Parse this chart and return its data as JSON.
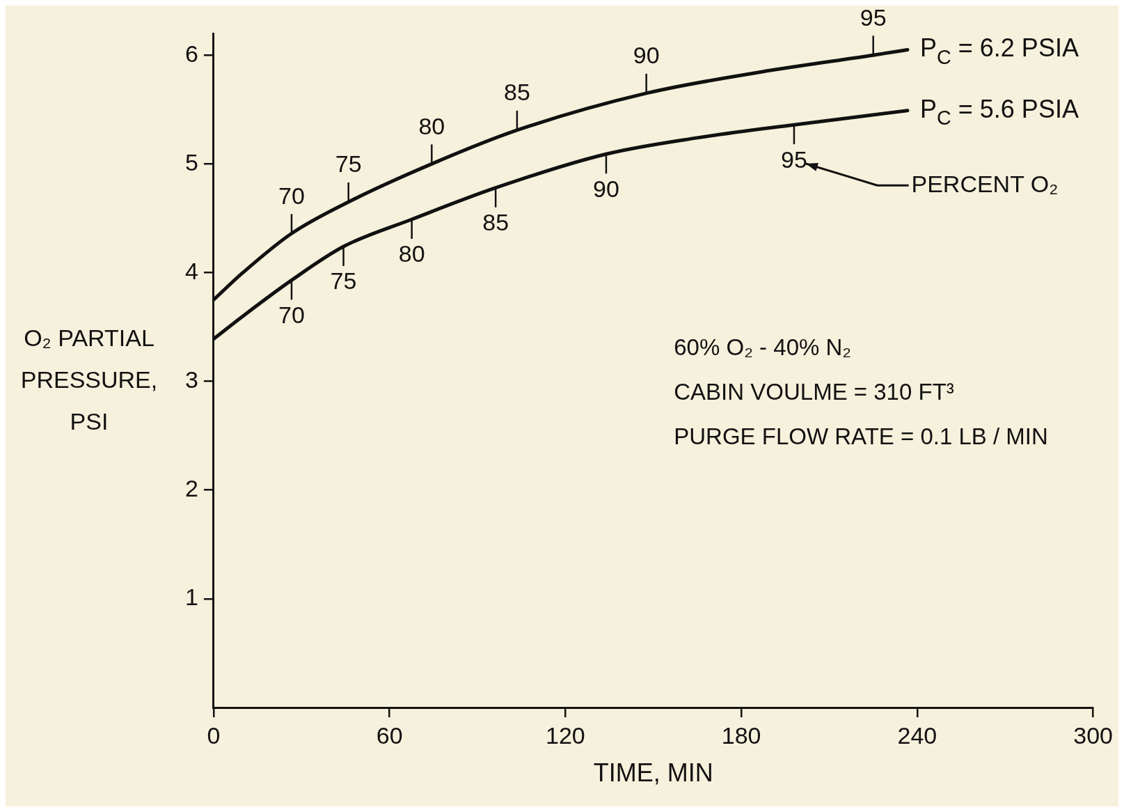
{
  "chart_data": {
    "type": "line",
    "xlabel": "TIME, MIN",
    "ylabel": "O₂ PARTIAL PRESSURE, PSI",
    "xlim": [
      0,
      300
    ],
    "xticks": [
      0,
      60,
      120,
      180,
      240,
      300
    ],
    "ylim": [
      0,
      6.2
    ],
    "yticks": [
      1,
      2,
      3,
      4,
      5,
      6
    ],
    "grid": false,
    "legend": "right",
    "marker": "none",
    "line_style": "solid",
    "series": [
      {
        "name": "P$_{C}$ = 6.2 PSIA",
        "color": "#111111",
        "x": [
          0,
          10,
          26.6,
          46,
          74.4,
          103.5,
          147.6,
          190,
          225,
          236.7
        ],
        "values": [
          3.75,
          4.0,
          4.36,
          4.65,
          5.0,
          5.31,
          5.65,
          5.86,
          6.0,
          6.05
        ]
      },
      {
        "name": "P$_{C}$ = 5.6 PSIA",
        "color": "#111111",
        "x": [
          0,
          10,
          26.6,
          44.3,
          67.6,
          96.2,
          133.9,
          165,
          198,
          236.7
        ],
        "values": [
          3.39,
          3.6,
          3.93,
          4.24,
          4.49,
          4.78,
          5.09,
          5.24,
          5.36,
          5.49
        ]
      }
    ],
    "annotations": [
      "PERCENT O₂",
      "60% O₂ - 40% N₂",
      "CABIN VOULME = 310 FT³",
      "PURGE FLOW RATE = 0.1 LB / MIN",
      {
        "text": "70",
        "x": 26.6,
        "y": 4.36
      },
      {
        "text": "75",
        "x": 46,
        "y": 4.65
      },
      {
        "text": "80",
        "x": 74.4,
        "y": 5.0
      },
      {
        "text": "85",
        "x": 103.5,
        "y": 5.31
      },
      {
        "text": "90",
        "x": 147.6,
        "y": 5.65
      },
      {
        "text": "95",
        "x": 225,
        "y": 6.0
      },
      {
        "text": "70",
        "x": 26.6,
        "y": 3.93
      },
      {
        "text": "75",
        "x": 44.3,
        "y": 4.24
      },
      {
        "text": "80",
        "x": 67.6,
        "y": 4.49
      },
      {
        "text": "85",
        "x": 96.2,
        "y": 4.78
      },
      {
        "text": "90",
        "x": 133.9,
        "y": 5.09
      },
      {
        "text": "95",
        "x": 198,
        "y": 5.36
      }
    ]
  }
}
